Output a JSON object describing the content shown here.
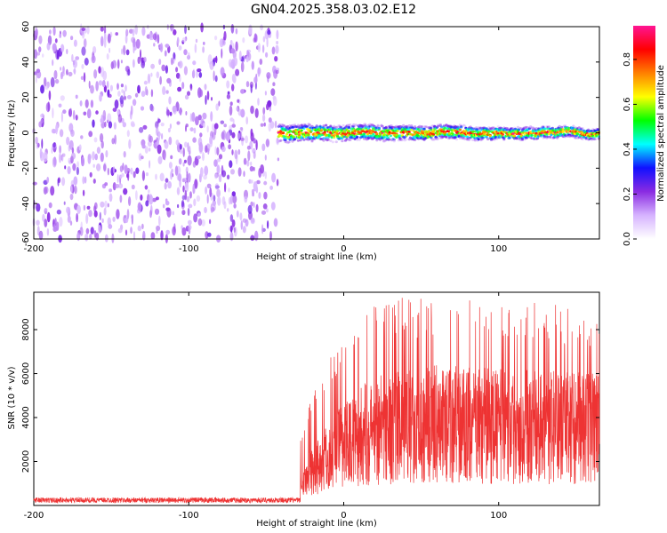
{
  "title": "GN04.2025.358.03.02.E12",
  "chart_data": [
    {
      "type": "heatmap",
      "name": "spectrogram",
      "xlabel": "Height of straight line (km)",
      "ylabel": "Frequency (Hz)",
      "xlim": [
        -200,
        165
      ],
      "ylim": [
        -60,
        60
      ],
      "xticks": [
        -200,
        -100,
        0,
        100
      ],
      "yticks": [
        -60,
        -40,
        -20,
        0,
        20,
        40,
        60
      ],
      "noise_region_x": [
        -200,
        -42
      ],
      "signal_region_x": [
        -42,
        165
      ],
      "signal_center_freq_hz": 0,
      "colorbar": {
        "label": "Normalized spectral amplitude",
        "range": [
          0,
          0.95
        ],
        "ticks": [
          0.0,
          0.2,
          0.4,
          0.6,
          0.8
        ],
        "colors": [
          "#ffffff",
          "#d6b3ff",
          "#8a2be2",
          "#1010ff",
          "#00ffff",
          "#00ff00",
          "#ffff00",
          "#ff8000",
          "#ff0000",
          "#ff1493"
        ]
      }
    },
    {
      "type": "line",
      "name": "snr",
      "xlabel": "Height of straight line (km)",
      "ylabel": "SNR (10 * v/v)",
      "xlim": [
        -200,
        165
      ],
      "ylim": [
        0,
        9700
      ],
      "xticks": [
        -200,
        -100,
        0,
        100
      ],
      "yticks": [
        2000,
        4000,
        6000,
        8000
      ],
      "color": "#ee3333",
      "noise_level": 200,
      "onset_x": -28,
      "profile": {
        "x": [
          -200,
          -30,
          -28,
          -20,
          0,
          20,
          60,
          100,
          165
        ],
        "mean": [
          200,
          220,
          900,
          1800,
          3000,
          3700,
          4000,
          3900,
          3800
        ],
        "max": [
          420,
          450,
          3300,
          5200,
          8000,
          9500,
          9500,
          9600,
          8800
        ]
      }
    }
  ]
}
